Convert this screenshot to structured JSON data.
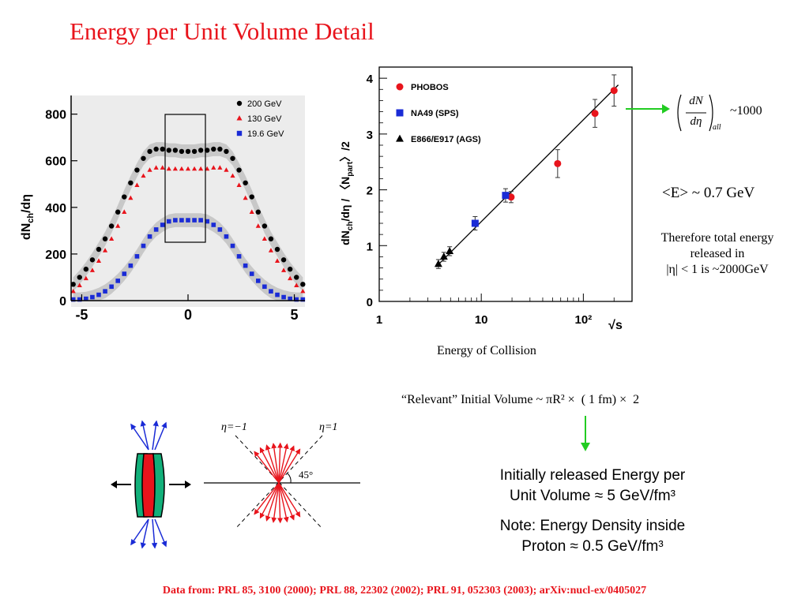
{
  "slide": {
    "title": "Energy per Unit Volume Detail",
    "footer": "Data from: PRL 85, 3100 (2000); PRL 88, 22302 (2002);  PRL 91, 052303 (2003); arXiv:nucl-ex/0405027"
  },
  "left_plot": {
    "ylabel": "dNch/dη",
    "yticks": [
      "0",
      "200",
      "400",
      "600",
      "800"
    ],
    "xticks": [
      "-5",
      "0",
      "5"
    ],
    "legend": [
      {
        "label": "200 GeV",
        "color": "#000000",
        "marker": "circle"
      },
      {
        "label": "130 GeV",
        "color": "#e8141c",
        "marker": "triangle"
      },
      {
        "label": "19.6 GeV",
        "color": "#1a2bd6",
        "marker": "square"
      }
    ]
  },
  "right_plot": {
    "ylabel": "dNch/dη / 〈Npart〉/2",
    "xlabel": "√s",
    "caption": "Energy of Collision",
    "yticks": [
      "0",
      "1",
      "2",
      "3",
      "4"
    ],
    "xticks": [
      "1",
      "10",
      "10²"
    ],
    "legend": [
      {
        "label": "PHOBOS",
        "color": "#e8141c",
        "marker": "circle"
      },
      {
        "label": "NA49 (SPS)",
        "color": "#1a2bd6",
        "marker": "square"
      },
      {
        "label": "E866/E917 (AGS)",
        "color": "#000000",
        "marker": "triangle"
      }
    ]
  },
  "formula": {
    "numer": "dN",
    "denom": "dη",
    "subscript": "all",
    "approx": "~1000"
  },
  "energy_note": "<E> ~ 0.7 GeV",
  "total_energy": {
    "line1": "Therefore total energy",
    "line2": "released in",
    "line3": "|η| < 1 is ~2000GeV"
  },
  "volume_note": "“Relevant” Initial Volume ~ πR² ×  ( 1 fm) ×  2",
  "result": {
    "line1": "Initially released Energy per",
    "line2": "Unit Volume ≈ 5 GeV/fm³",
    "line3": "Note: Energy Density inside",
    "line4": "Proton ≈ 0.5 GeV/fm³"
  },
  "eta_diagram": {
    "label_left": "η=−1",
    "label_right": "η=1",
    "angle": "45°"
  },
  "chart_data": [
    {
      "type": "scatter",
      "title": "",
      "xlabel": "",
      "ylabel": "dNch/dη",
      "xlim": [
        -5.5,
        5.5
      ],
      "ylim": [
        0,
        880
      ],
      "legend": "top-right",
      "series": [
        {
          "name": "200 GeV",
          "color": "#000000",
          "x": [
            -5.4,
            -5.1,
            -4.8,
            -4.5,
            -4.2,
            -3.9,
            -3.6,
            -3.3,
            -3.0,
            -2.7,
            -2.4,
            -2.1,
            -1.8,
            -1.5,
            -1.2,
            -0.9,
            -0.6,
            -0.3,
            0.0,
            0.3,
            0.6,
            0.9,
            1.2,
            1.5,
            1.8,
            2.1,
            2.4,
            2.7,
            3.0,
            3.3,
            3.6,
            3.9,
            4.2,
            4.5,
            4.8,
            5.1,
            5.4
          ],
          "y": [
            70,
            100,
            135,
            175,
            220,
            265,
            320,
            380,
            445,
            505,
            560,
            610,
            640,
            650,
            650,
            645,
            645,
            640,
            640,
            640,
            645,
            645,
            650,
            650,
            640,
            610,
            560,
            505,
            445,
            380,
            320,
            265,
            220,
            175,
            135,
            100,
            70
          ]
        },
        {
          "name": "130 GeV",
          "color": "#e8141c",
          "x": [
            -5.4,
            -5.1,
            -4.8,
            -4.5,
            -4.2,
            -3.9,
            -3.6,
            -3.3,
            -3.0,
            -2.7,
            -2.4,
            -2.1,
            -1.8,
            -1.5,
            -1.2,
            -0.9,
            -0.6,
            -0.3,
            0.0,
            0.3,
            0.6,
            0.9,
            1.2,
            1.5,
            1.8,
            2.1,
            2.4,
            2.7,
            3.0,
            3.3,
            3.6,
            3.9,
            4.2,
            4.5,
            4.8,
            5.1,
            5.4
          ],
          "y": [
            40,
            65,
            95,
            130,
            170,
            215,
            265,
            320,
            380,
            440,
            495,
            535,
            560,
            570,
            570,
            565,
            565,
            565,
            565,
            565,
            565,
            565,
            570,
            570,
            560,
            535,
            495,
            440,
            380,
            320,
            265,
            215,
            170,
            130,
            95,
            65,
            40
          ]
        },
        {
          "name": "19.6 GeV",
          "color": "#1a2bd6",
          "x": [
            -5.4,
            -5.1,
            -4.8,
            -4.5,
            -4.2,
            -3.9,
            -3.6,
            -3.3,
            -3.0,
            -2.7,
            -2.4,
            -2.1,
            -1.8,
            -1.5,
            -1.2,
            -0.9,
            -0.6,
            -0.3,
            0.0,
            0.3,
            0.6,
            0.9,
            1.2,
            1.5,
            1.8,
            2.1,
            2.4,
            2.7,
            3.0,
            3.3,
            3.6,
            3.9,
            4.2,
            4.5,
            4.8,
            5.1,
            5.4
          ],
          "y": [
            5,
            5,
            8,
            15,
            25,
            40,
            60,
            85,
            115,
            150,
            190,
            235,
            275,
            305,
            325,
            340,
            345,
            345,
            345,
            345,
            345,
            340,
            325,
            305,
            275,
            235,
            190,
            150,
            115,
            85,
            60,
            40,
            25,
            15,
            8,
            5,
            5
          ]
        }
      ]
    },
    {
      "type": "scatter",
      "title": "",
      "xlabel": "√s",
      "ylabel": "dNch/dη / 〈Npart〉/2",
      "xscale": "log",
      "xlim": [
        1,
        300
      ],
      "ylim": [
        0,
        4.2
      ],
      "legend": "top-left",
      "series": [
        {
          "name": "PHOBOS",
          "color": "#e8141c",
          "x": [
            19.6,
            56,
            130,
            200
          ],
          "y": [
            1.87,
            2.47,
            3.37,
            3.78
          ],
          "err": [
            0.1,
            0.25,
            0.25,
            0.28
          ]
        },
        {
          "name": "NA49 (SPS)",
          "color": "#1a2bd6",
          "x": [
            8.7,
            17.3
          ],
          "y": [
            1.4,
            1.9
          ],
          "err": [
            0.12,
            0.12
          ]
        },
        {
          "name": "E866/E917 (AGS)",
          "color": "#000000",
          "x": [
            3.8,
            4.3,
            4.9
          ],
          "y": [
            0.67,
            0.8,
            0.9
          ],
          "err": [
            0.08,
            0.08,
            0.08
          ]
        }
      ],
      "fit_line": {
        "x": [
          3.6,
          220
        ],
        "y": [
          0.62,
          3.88
        ]
      }
    }
  ]
}
